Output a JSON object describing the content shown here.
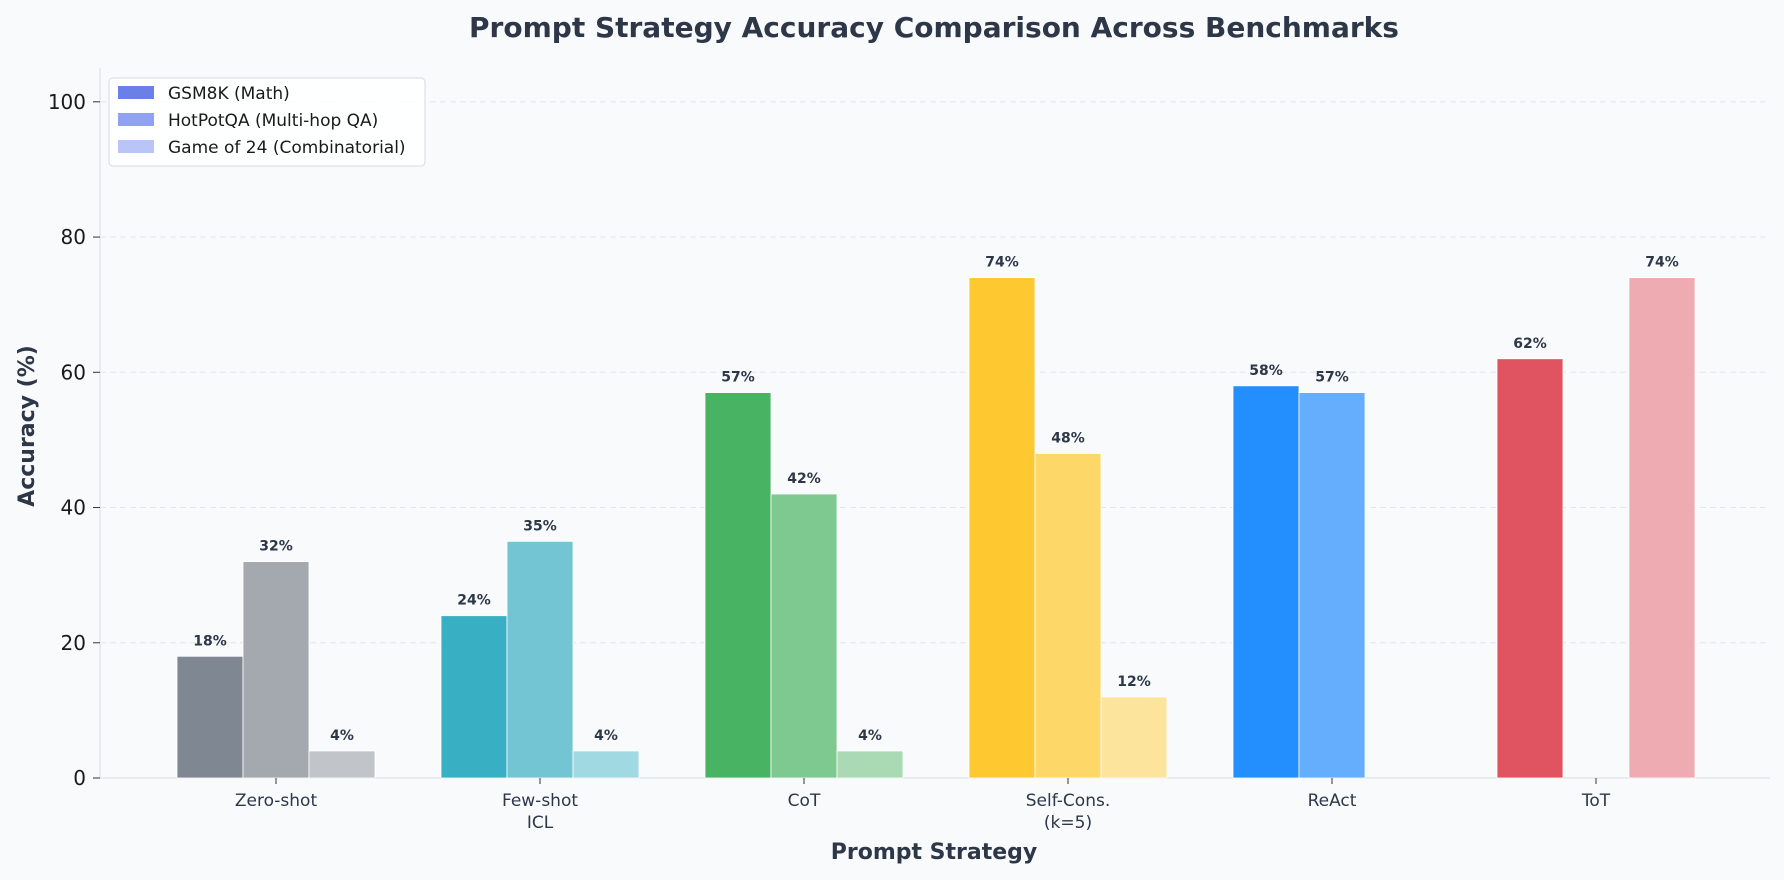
{
  "chart_data": {
    "type": "bar",
    "title": "Prompt Strategy Accuracy Comparison Across Benchmarks",
    "xlabel": "Prompt Strategy",
    "ylabel": "Accuracy (%)",
    "ylim": [
      0,
      105
    ],
    "yticks": [
      "0",
      "20",
      "40",
      "60",
      "80",
      "100"
    ],
    "grid": true,
    "legend_position": "top-left",
    "categories": [
      {
        "line1": "Zero-shot",
        "line2": ""
      },
      {
        "line1": "Few-shot",
        "line2": "ICL"
      },
      {
        "line1": "CoT",
        "line2": ""
      },
      {
        "line1": "Self-Cons.",
        "line2": "(k=5)"
      },
      {
        "line1": "ReAct",
        "line2": ""
      },
      {
        "line1": "ToT",
        "line2": ""
      }
    ],
    "series": [
      {
        "name": "GSM8K (Math)",
        "legend_color": "#6b7fe8",
        "values": [
          18,
          24,
          57,
          74,
          58,
          62
        ],
        "labels": [
          "18%",
          "24%",
          "57%",
          "74%",
          "58%",
          "62%"
        ]
      },
      {
        "name": "HotPotQA (Multi-hop QA)",
        "legend_color": "#91a3f0",
        "values": [
          32,
          35,
          42,
          48,
          57,
          null
        ],
        "labels": [
          "32%",
          "35%",
          "42%",
          "48%",
          "57%",
          ""
        ]
      },
      {
        "name": "Game of 24 (Combinatorial)",
        "legend_color": "#b9c5f6",
        "values": [
          4,
          4,
          4,
          12,
          null,
          74
        ],
        "labels": [
          "4%",
          "4%",
          "4%",
          "12%",
          "",
          "74%"
        ]
      }
    ],
    "bar_colors": [
      [
        "#7f8892",
        "#a3a9af",
        "#c1c5c9"
      ],
      [
        "#38afc2",
        "#73c5d3",
        "#a1d9e2"
      ],
      [
        "#48b363",
        "#7ec98f",
        "#a9dab4"
      ],
      [
        "#fec930",
        "#fdd868",
        "#fde49c"
      ],
      [
        "#238efe",
        "#65aefd",
        "#a3cdfd"
      ],
      [
        "#e05361",
        "#ea8a93",
        "#efabb2"
      ]
    ]
  }
}
